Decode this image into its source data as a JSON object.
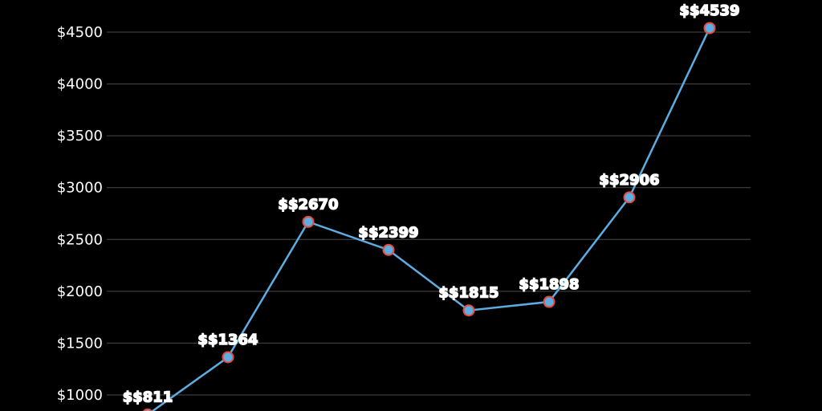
{
  "chart_data": {
    "type": "line",
    "y_ticks": [
      1000,
      1500,
      2000,
      2500,
      3000,
      3500,
      4000,
      4500
    ],
    "y_tick_labels": [
      "$1000",
      "$1500",
      "$2000",
      "$2500",
      "$3000",
      "$3500",
      "$4000",
      "$4500"
    ],
    "ylim": [
      1000,
      4500
    ],
    "grid": true,
    "series": [
      {
        "values": [
          811,
          1364,
          2670,
          2399,
          1815,
          1898,
          2906,
          4539
        ],
        "labels": [
          "$$811",
          "$$1364",
          "$$2670",
          "$$2399",
          "$$1815",
          "$$1898",
          "$$2906",
          "$$4539"
        ]
      }
    ],
    "colors": {
      "background": "#000000",
      "line": "#5dade2",
      "marker_fill": "#5dade2",
      "marker_stroke": "#e74c3c",
      "grid": "#4a4a4a",
      "text": "#ffffff"
    }
  }
}
